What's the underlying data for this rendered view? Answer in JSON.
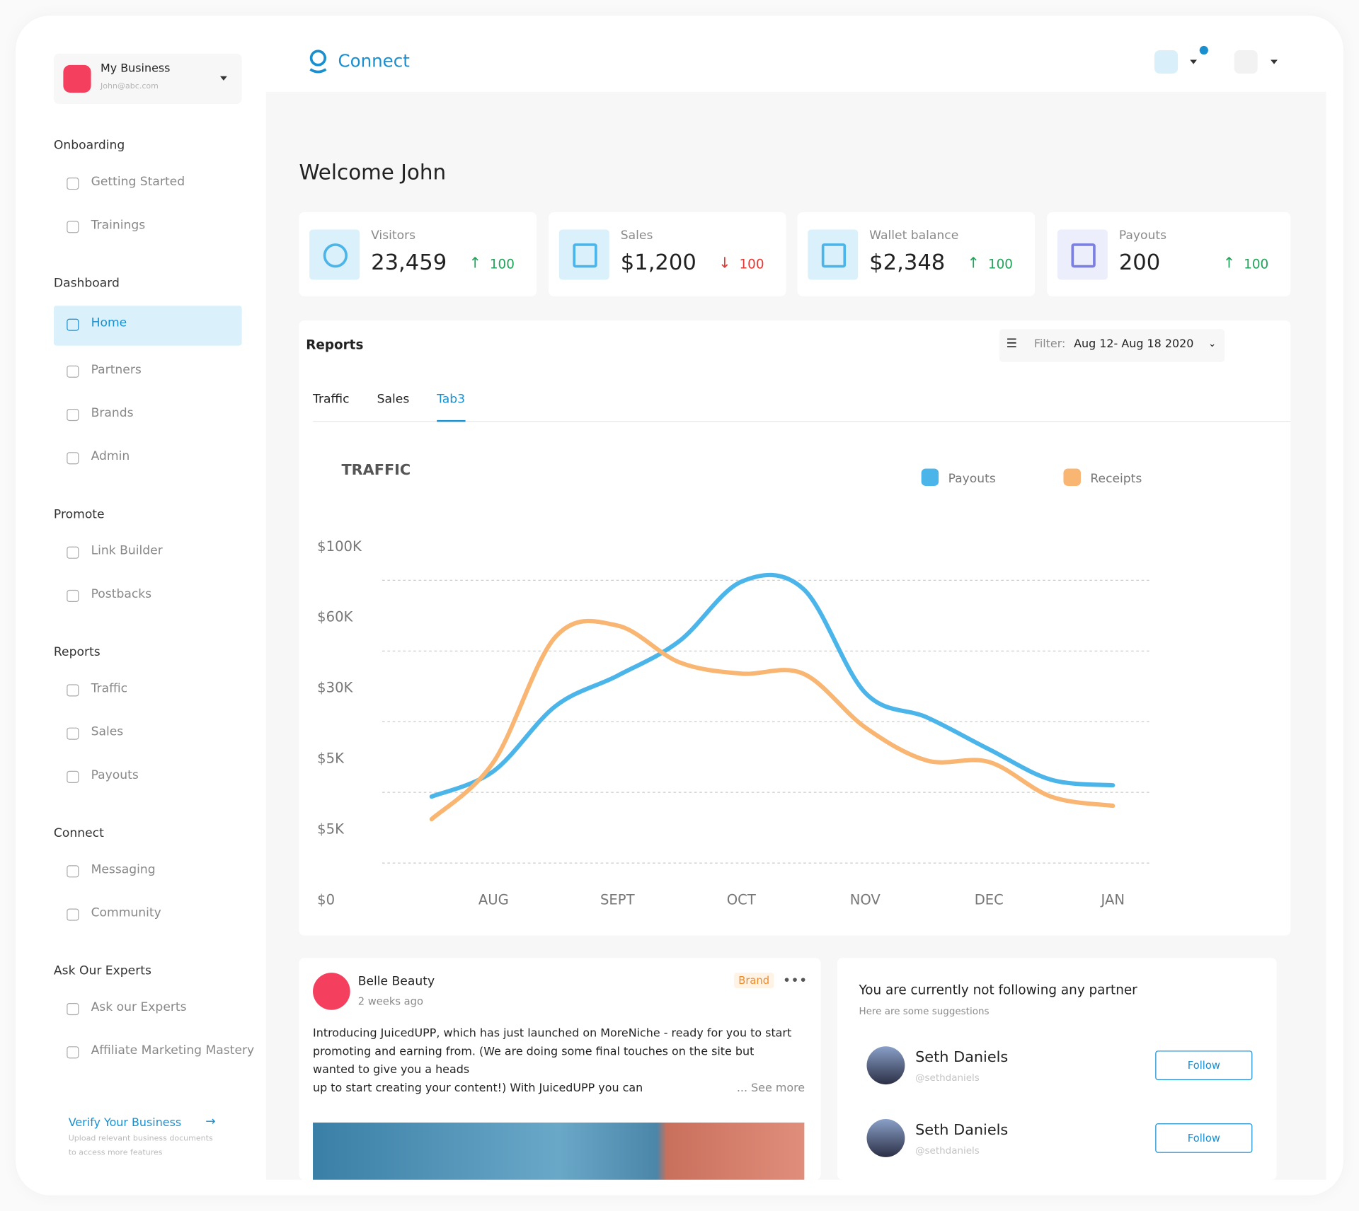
{
  "sidebar": {
    "business": {
      "name": "My Business",
      "email": "John@abc.com"
    },
    "sections": [
      {
        "title": "Onboarding",
        "items": [
          "Getting Started",
          "Trainings"
        ]
      },
      {
        "title": "Dashboard",
        "items": [
          "Home",
          "Partners",
          "Brands",
          "Admin"
        ]
      },
      {
        "title": "Promote",
        "items": [
          "Link Builder",
          "Postbacks"
        ]
      },
      {
        "title": "Reports",
        "items": [
          "Traffic",
          "Sales",
          "Payouts"
        ]
      },
      {
        "title": "Connect",
        "items": [
          "Messaging",
          "Community"
        ]
      },
      {
        "title": "Ask Our Experts",
        "items": [
          "Ask our Experts",
          "Affiliate Marketing Mastery"
        ]
      }
    ],
    "verify": {
      "title": "Verify Your Business",
      "text": [
        "Upload relevant business documents",
        "to access more features"
      ]
    }
  },
  "header": {
    "brand": "Connect"
  },
  "welcome": "Welcome John",
  "stats": [
    {
      "label": "Visitors",
      "value": "23,459",
      "change": "100",
      "trend": "up"
    },
    {
      "label": "Sales",
      "value": "$1,200",
      "change": "100",
      "trend": "down"
    },
    {
      "label": "Wallet balance",
      "value": "$2,348",
      "change": "100",
      "trend": "up"
    },
    {
      "label": "Payouts",
      "value": "200",
      "change": "100",
      "trend": "up"
    }
  ],
  "reports": {
    "title": "Reports",
    "filter_label": "Filter:",
    "filter_value": "Aug 12- Aug 18 2020",
    "tabs": [
      "Traffic",
      "Sales",
      "Tab3"
    ],
    "active_tab": 2
  },
  "chart_data": {
    "type": "line",
    "title": "TRAFFIC",
    "categories": [
      null,
      "AUG",
      null,
      "SEPT",
      null,
      "OCT",
      null,
      "NOV",
      null,
      "DEC",
      null,
      "JAN"
    ],
    "series": [
      {
        "name": "Payouts",
        "color": "#4bb5ea",
        "values": [
          1.45,
          1.81,
          2.73,
          3.16,
          3.65,
          4.49,
          4.39,
          2.92,
          2.57,
          2.12,
          1.69,
          1.61
        ]
      },
      {
        "name": "Receipts",
        "color": "#f9b572",
        "values": [
          1.13,
          1.94,
          3.71,
          3.87,
          3.35,
          3.19,
          3.19,
          2.43,
          1.96,
          1.94,
          1.45,
          1.32
        ]
      }
    ],
    "ylim": [
      0,
      5
    ],
    "yticks": [
      {
        "value": 0,
        "label": "$0"
      },
      {
        "value": 1,
        "label": "$5K"
      },
      {
        "value": 2,
        "label": "$5K"
      },
      {
        "value": 3,
        "label": "$30K"
      },
      {
        "value": 4,
        "label": "$60K"
      },
      {
        "value": 5,
        "label": "$100K"
      }
    ],
    "grid": true
  },
  "post": {
    "author": "Belle Beauty",
    "time": "2 weeks ago",
    "tag": "Brand",
    "lines": [
      "Introducing JuicedUPP, which has just launched on MoreNiche - ready for you to start",
      "promoting and earning from. (We are doing some final touches on the site but",
      "wanted to give you a heads",
      "up to start creating your content!) With JuicedUPP you can"
    ],
    "more": "... See more"
  },
  "suggestions": {
    "title": "You are currently not following any partner",
    "subtitle": "Here are some suggestions",
    "people": [
      {
        "name": "Seth Daniels",
        "handle": "@sethdaniels",
        "action": "Follow"
      },
      {
        "name": "Seth Daniels",
        "handle": "@sethdaniels",
        "action": "Follow"
      }
    ]
  }
}
